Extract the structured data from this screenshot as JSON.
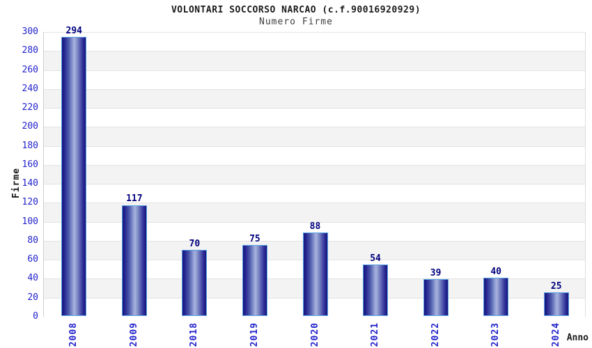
{
  "header": {
    "title": "VOLONTARI SOCCORSO NARCAO (c.f.90016920929)",
    "subtitle": "Numero Firme"
  },
  "axes": {
    "y_title": "Firme",
    "x_title": "Anno"
  },
  "chart_data": {
    "type": "bar",
    "title": "VOLONTARI SOCCORSO NARCAO (c.f.90016920929)",
    "subtitle": "Numero Firme",
    "categories": [
      "2008",
      "2009",
      "2018",
      "2019",
      "2020",
      "2021",
      "2022",
      "2023",
      "2024"
    ],
    "values": [
      294,
      117,
      70,
      75,
      88,
      54,
      39,
      40,
      25
    ],
    "xlabel": "Anno",
    "ylabel": "Firme",
    "ylim": [
      0,
      300
    ],
    "ytick_step": 20,
    "grid": "horizontal-bands-alternating",
    "legend_visible": false
  },
  "colors": {
    "tick_label_blue": "#2222cc",
    "value_label_navy": "#00007d",
    "bar_border_lightblue": "#5aa2e4",
    "bar_dark_navy": "#15157b",
    "bar_light_center": "#a9b3de",
    "band_gray": "#f3f3f3",
    "band_white": "#ffffff",
    "gridline_gray": "#e3e3e3",
    "axis_line_gray": "#cccccc",
    "title_color": "#1a1a1a",
    "subtitle_color": "#3c3c3c"
  }
}
